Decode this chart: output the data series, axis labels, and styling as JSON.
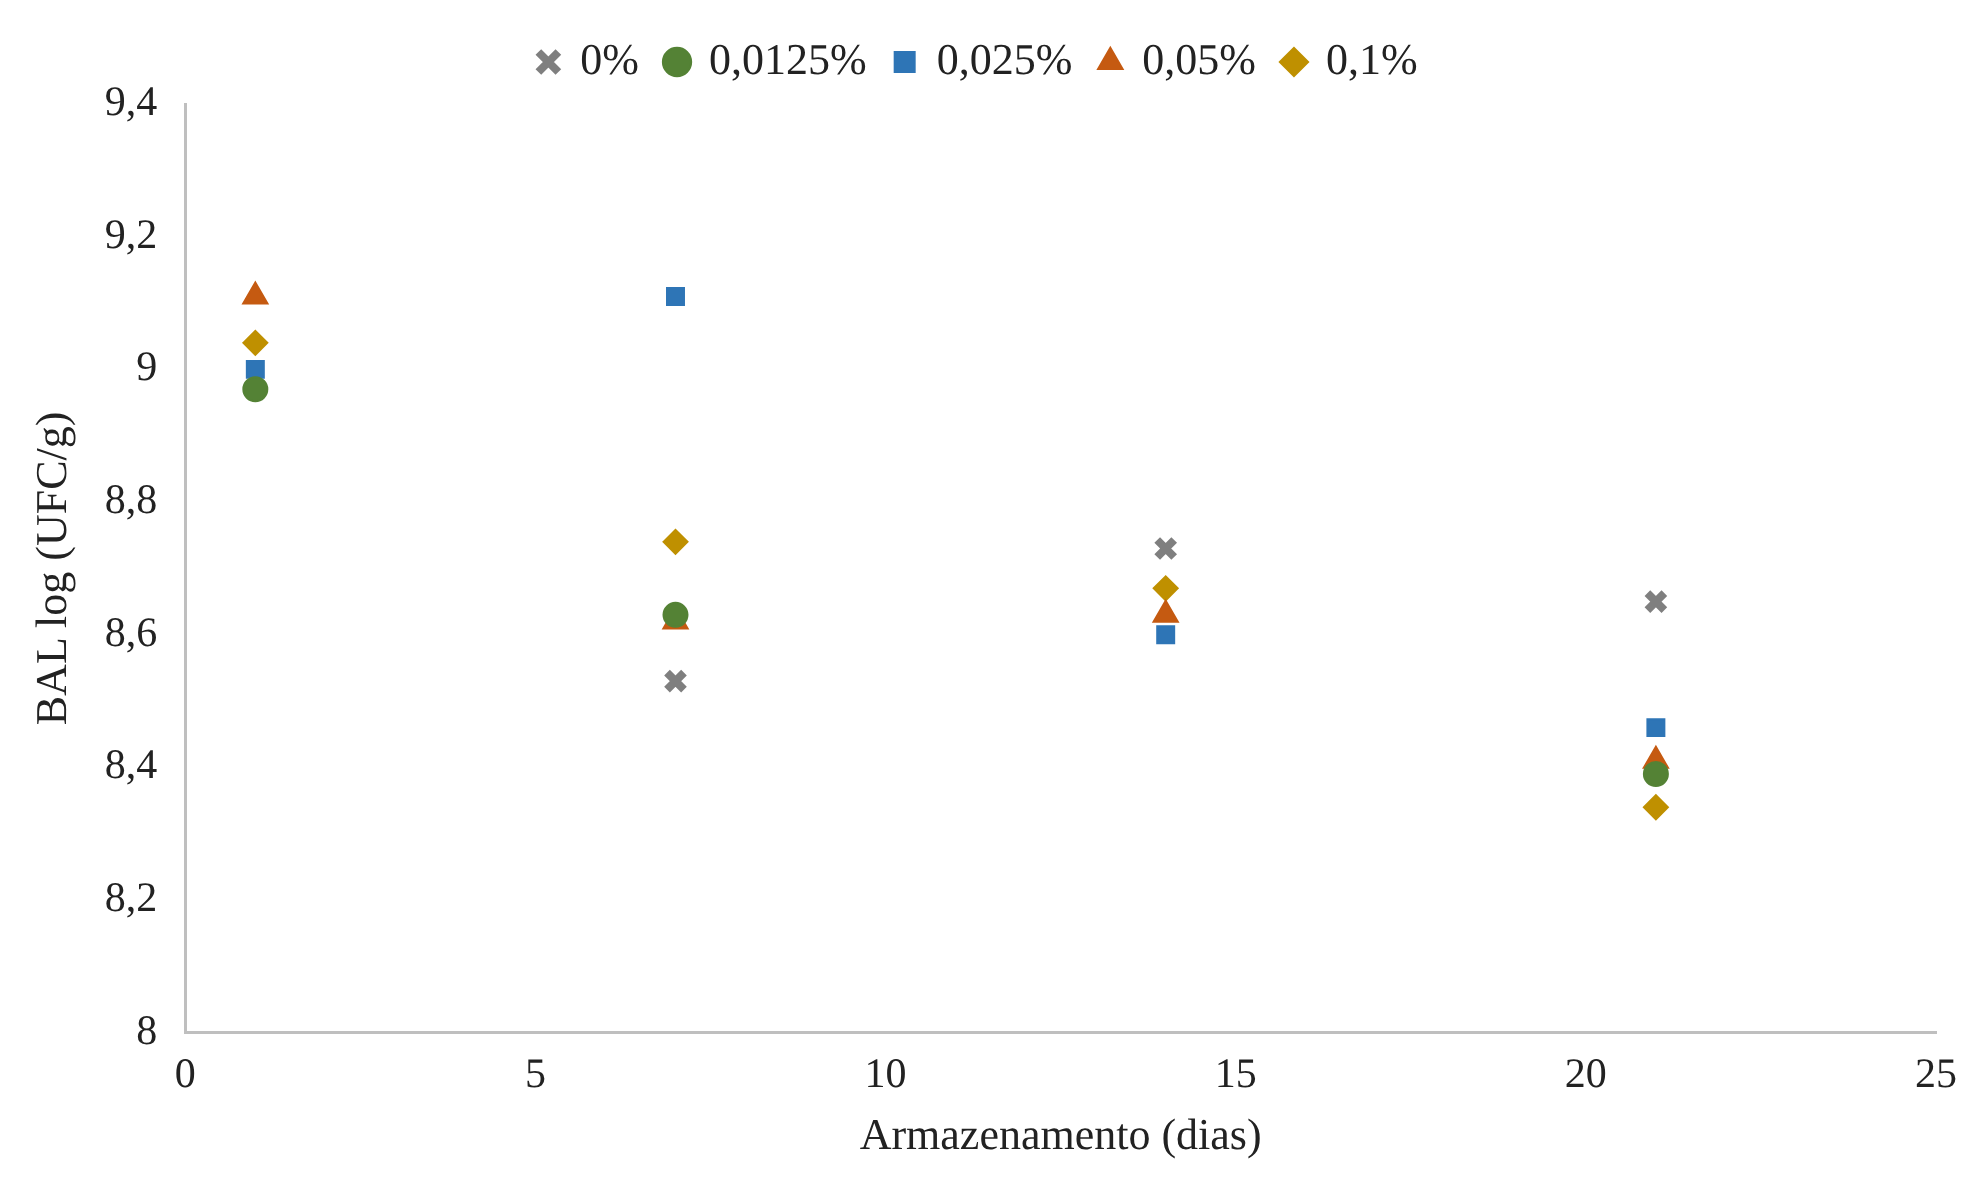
{
  "chart_data": {
    "type": "scatter",
    "xlabel": "Armazenamento (dias)",
    "ylabel": "BAL log (UFC/g)",
    "x": [
      1,
      7,
      14,
      21
    ],
    "series": [
      {
        "name": "0%",
        "color": "#7f7f7f",
        "marker": "cross",
        "values": [
          null,
          8.53,
          8.73,
          8.65
        ]
      },
      {
        "name": "0,0125%",
        "color": "#548235",
        "marker": "circle",
        "values": [
          8.97,
          8.63,
          null,
          8.39
        ]
      },
      {
        "name": "0,025%",
        "color": "#2e75b6",
        "marker": "square",
        "values": [
          9.0,
          9.11,
          8.6,
          8.46
        ]
      },
      {
        "name": "0,05%",
        "color": "#c55a11",
        "marker": "triangle",
        "values": [
          9.11,
          8.62,
          8.63,
          8.41
        ]
      },
      {
        "name": "0,1%",
        "color": "#bf9000",
        "marker": "diamond",
        "values": [
          9.04,
          8.74,
          8.67,
          8.34
        ]
      }
    ],
    "xlim": [
      0,
      25
    ],
    "xticks": [
      0,
      5,
      10,
      15,
      20,
      25
    ],
    "ylim": [
      8,
      9.4
    ],
    "yticks": [
      8,
      {
        "value": 8.2,
        "label": "8,2"
      },
      {
        "value": 8.4,
        "label": "8,4"
      },
      {
        "value": 8.6,
        "label": "8,6"
      },
      {
        "value": 8.8,
        "label": "8,8"
      },
      9,
      {
        "value": 9.2,
        "label": "9,2"
      },
      {
        "value": 9.4,
        "label": "9,4"
      }
    ],
    "grid": false,
    "legend": "top"
  }
}
